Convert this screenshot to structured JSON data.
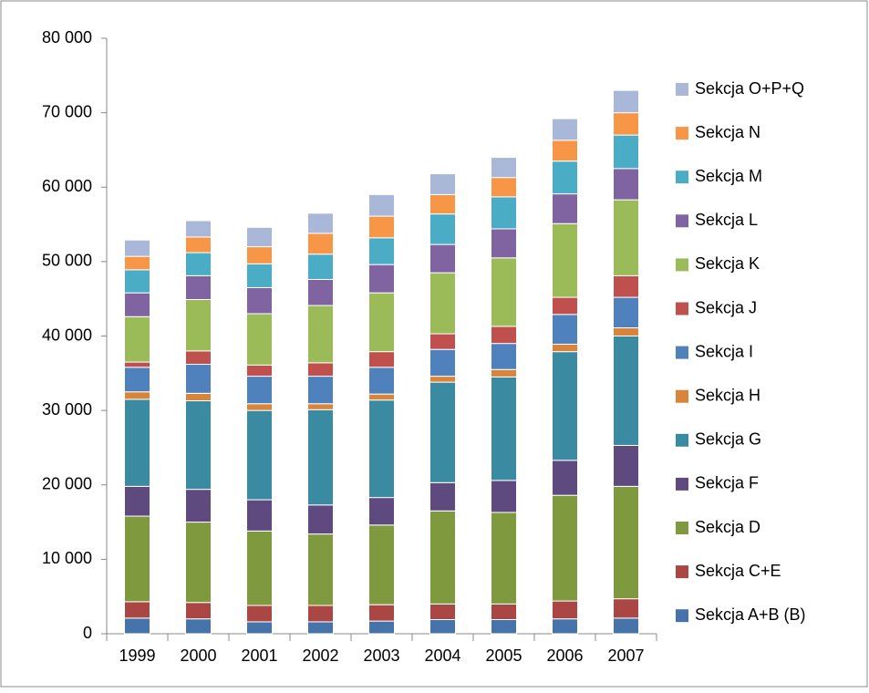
{
  "chart_data": {
    "type": "stacked-bar",
    "categories": [
      "1999",
      "2000",
      "2001",
      "2002",
      "2003",
      "2004",
      "2005",
      "2006",
      "2007"
    ],
    "series": [
      {
        "name": "Sekcja A+B (B)",
        "color": "#4674aa",
        "values": [
          2100,
          2000,
          1600,
          1600,
          1700,
          1900,
          1900,
          2000,
          2100
        ]
      },
      {
        "name": "Sekcja C+E",
        "color": "#aa4643",
        "values": [
          2200,
          2200,
          2200,
          2200,
          2200,
          2100,
          2100,
          2400,
          2600
        ]
      },
      {
        "name": "Sekcja D",
        "color": "#7f9a3e",
        "values": [
          11500,
          10800,
          10000,
          9600,
          10700,
          12500,
          12300,
          14200,
          15100
        ]
      },
      {
        "name": "Sekcja F",
        "color": "#5f4a7f",
        "values": [
          4000,
          4400,
          4200,
          3900,
          3700,
          3800,
          4300,
          4700,
          5500
        ]
      },
      {
        "name": "Sekcja G",
        "color": "#3a8ba1",
        "values": [
          11700,
          11900,
          12000,
          12800,
          13100,
          13500,
          13900,
          14600,
          14700
        ]
      },
      {
        "name": "Sekcja H",
        "color": "#d9843b",
        "values": [
          1000,
          1000,
          900,
          800,
          800,
          800,
          1000,
          1000,
          1100
        ]
      },
      {
        "name": "Sekcja I",
        "color": "#4f81bd",
        "values": [
          3300,
          3900,
          3700,
          3700,
          3600,
          3600,
          3500,
          4000,
          4100
        ]
      },
      {
        "name": "Sekcja J",
        "color": "#c0504d",
        "values": [
          700,
          1800,
          1500,
          1800,
          2100,
          2100,
          2300,
          2300,
          2900
        ]
      },
      {
        "name": "Sekcja K",
        "color": "#9bbb59",
        "values": [
          6100,
          6900,
          6900,
          7700,
          7900,
          8200,
          9200,
          9900,
          10200
        ]
      },
      {
        "name": "Sekcja L",
        "color": "#8064a2",
        "values": [
          3200,
          3200,
          3500,
          3500,
          3800,
          3800,
          3900,
          4000,
          4200
        ]
      },
      {
        "name": "Sekcja M",
        "color": "#4bacc6",
        "values": [
          3100,
          3100,
          3200,
          3400,
          3600,
          4100,
          4300,
          4400,
          4500
        ]
      },
      {
        "name": "Sekcja N",
        "color": "#f79646",
        "values": [
          1800,
          2100,
          2300,
          2800,
          2900,
          2600,
          2600,
          2800,
          3000
        ]
      },
      {
        "name": "Sekcja O+P+Q",
        "color": "#a9b8d8",
        "values": [
          2200,
          2200,
          2600,
          2700,
          2900,
          2800,
          2700,
          2900,
          3000
        ]
      }
    ],
    "ylim": [
      0,
      80000
    ],
    "yticks": [
      0,
      {
        "value": 10000,
        "label": "10 000"
      },
      {
        "value": 20000,
        "label": "20 000"
      },
      {
        "value": 30000,
        "label": "30 000"
      },
      {
        "value": 40000,
        "label": "40 000"
      },
      {
        "value": 50000,
        "label": "50 000"
      },
      {
        "value": 60000,
        "label": "60 000"
      },
      {
        "value": 70000,
        "label": "70 000"
      },
      {
        "value": 80000,
        "label": "80 000"
      }
    ],
    "grid": false,
    "legend": "right"
  }
}
